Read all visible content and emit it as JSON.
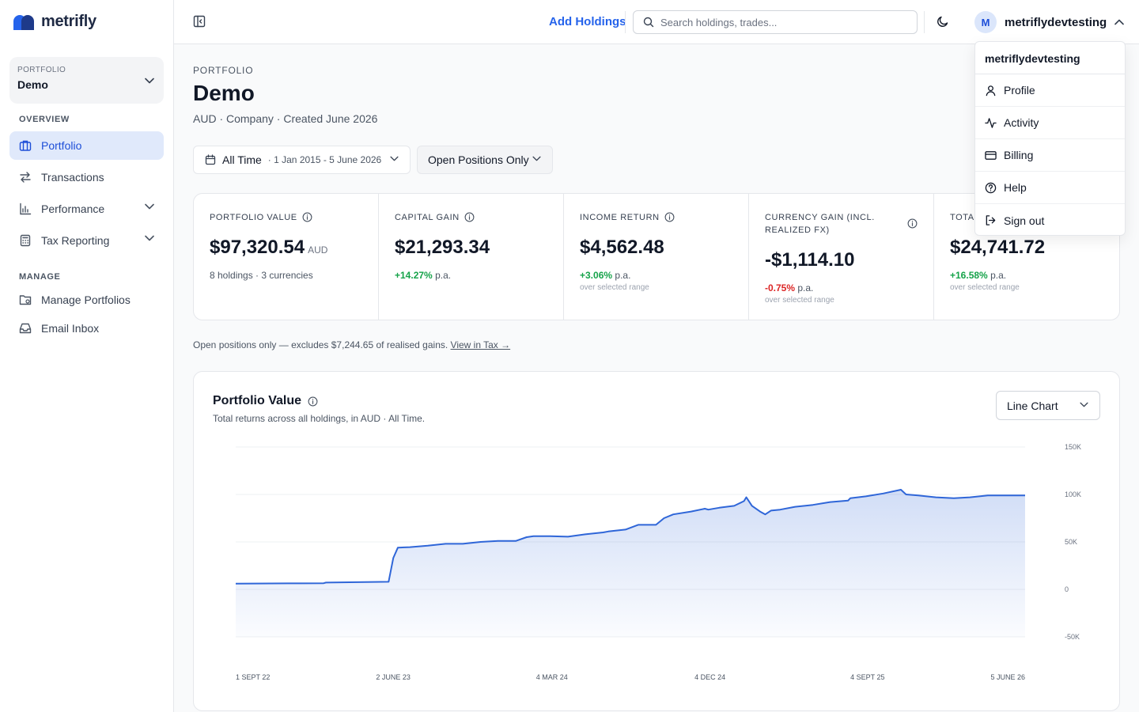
{
  "app": {
    "name": "metrifly"
  },
  "sidebar": {
    "portfolio_label": "PORTFOLIO",
    "portfolio_value": "Demo",
    "overview_label": "OVERVIEW",
    "manage_label": "MANAGE",
    "items": [
      {
        "label": "Portfolio",
        "icon": "briefcase-icon",
        "active": true
      },
      {
        "label": "Transactions",
        "icon": "arrows-exchange-icon"
      },
      {
        "label": "Performance",
        "icon": "bar-chart-icon",
        "expandable": true
      },
      {
        "label": "Tax Reporting",
        "icon": "calculator-icon",
        "expandable": true
      },
      {
        "label": "Manage Portfolios",
        "icon": "folder-gear-icon"
      },
      {
        "label": "Email Inbox",
        "icon": "inbox-icon"
      }
    ]
  },
  "topbar": {
    "add_holdings": "Add Holdings",
    "search_placeholder": "Search holdings, trades...",
    "user_initial": "M",
    "user_name": "metriflydevtesting"
  },
  "user_menu": {
    "header": "metriflydevtesting",
    "items": [
      {
        "label": "Profile",
        "icon": "user-icon"
      },
      {
        "label": "Activity",
        "icon": "activity-icon"
      },
      {
        "label": "Billing",
        "icon": "credit-card-icon"
      },
      {
        "label": "Help",
        "icon": "help-circle-icon"
      },
      {
        "label": "Sign out",
        "icon": "sign-out-icon"
      }
    ]
  },
  "page": {
    "eyebrow": "PORTFOLIO",
    "title": "Demo",
    "meta": "AUD · Company · Created June 2026",
    "range_main": "All Time",
    "range_sub": "· 1 Jan 2015 - 5 June 2026",
    "positions_filter": "Open Positions Only"
  },
  "stats": [
    {
      "label": "PORTFOLIO VALUE",
      "value": "$97,320.54",
      "unit": "AUD",
      "sub": "8 holdings · 3 currencies"
    },
    {
      "label": "CAPITAL GAIN",
      "value": "$21,293.34",
      "change": "+14.27%",
      "change_suffix": "p.a."
    },
    {
      "label": "INCOME RETURN",
      "value": "$4,562.48",
      "change": "+3.06%",
      "change_suffix": "p.a.",
      "note": "over selected range"
    },
    {
      "label": "CURRENCY GAIN (INCL. REALIZED FX)",
      "value": "-$1,114.10",
      "change": "-0.75%",
      "change_suffix": "p.a.",
      "note": "over selected range"
    },
    {
      "label": "TOTA",
      "value": "$24,741.72",
      "change": "+16.58%",
      "change_suffix": "p.a.",
      "note": "over selected range"
    }
  ],
  "notice": {
    "text": "Open positions only — excludes $7,244.65 of realised gains.",
    "link": "View in Tax →"
  },
  "chart_card": {
    "title": "Portfolio Value",
    "subtitle": "Total returns across all holdings, in AUD · All Time.",
    "chart_type": "Line Chart"
  },
  "colors": {
    "accent": "#2563eb",
    "positive": "#16a34a",
    "negative": "#dc2626",
    "line": "#2f66d8"
  },
  "chart_data": {
    "type": "area",
    "title": "Portfolio Value",
    "y_ticks": [
      "150K",
      "100K",
      "50K",
      "0",
      "-50K"
    ],
    "y_tick_values": [
      150000,
      100000,
      50000,
      0,
      -50000
    ],
    "ylim": [
      -50000,
      150000
    ],
    "x_ticks": [
      "1 SEPT 22",
      "2 JUNE 23",
      "4 MAR 24",
      "4 DEC 24",
      "4 SEPT 25",
      "5 JUNE 26"
    ],
    "x_tick_dates": [
      "2022-09-01",
      "2023-06-02",
      "2024-03-04",
      "2024-12-04",
      "2025-09-04",
      "2026-06-05"
    ],
    "grid": true,
    "legend": false,
    "series": [
      {
        "x": [
          "2022-09-01",
          "2022-12-01",
          "2023-02-01",
          "2023-02-05",
          "2023-05-25",
          "2023-06-02",
          "2023-06-10",
          "2023-07-01",
          "2023-08-01",
          "2023-09-01",
          "2023-10-01",
          "2023-11-01",
          "2023-12-01",
          "2024-01-01",
          "2024-01-20",
          "2024-02-01",
          "2024-03-01",
          "2024-04-01",
          "2024-05-01",
          "2024-06-01",
          "2024-06-10",
          "2024-07-10",
          "2024-08-01",
          "2024-09-01",
          "2024-09-15",
          "2024-10-01",
          "2024-11-01",
          "2024-11-25",
          "2024-12-01",
          "2024-12-20",
          "2025-01-15",
          "2025-02-01",
          "2025-02-05",
          "2025-02-15",
          "2025-03-01",
          "2025-03-10",
          "2025-03-20",
          "2025-04-05",
          "2025-05-01",
          "2025-06-01",
          "2025-07-01",
          "2025-08-01",
          "2025-08-05",
          "2025-09-01",
          "2025-10-01",
          "2025-11-01",
          "2025-11-10",
          "2025-12-01",
          "2026-01-01",
          "2026-02-01",
          "2026-03-01",
          "2026-04-01",
          "2026-05-01",
          "2026-06-05"
        ],
        "y": [
          6000,
          6300,
          6500,
          7200,
          8000,
          33000,
          44000,
          44500,
          46000,
          48000,
          48000,
          50000,
          51000,
          51000,
          55000,
          56000,
          56000,
          55500,
          58000,
          60000,
          61000,
          63000,
          68000,
          68000,
          75000,
          79000,
          82000,
          85000,
          84000,
          86000,
          88000,
          93000,
          97000,
          88000,
          82000,
          79000,
          83000,
          84000,
          87000,
          89000,
          92000,
          93500,
          96000,
          98000,
          101000,
          105000,
          100000,
          99000,
          97000,
          96000,
          97000,
          99000,
          99000,
          99000
        ]
      }
    ]
  }
}
